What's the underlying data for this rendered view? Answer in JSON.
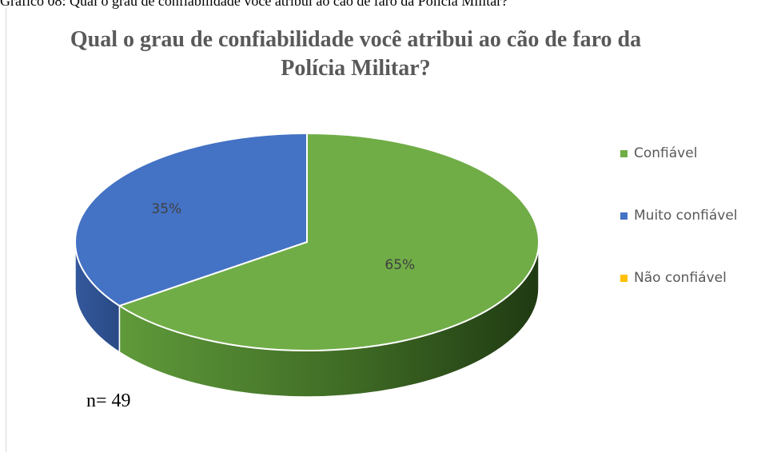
{
  "caption": "Gráfico 08: Qual o grau de confiabilidade você atribui ao cão de faro da Polícia Militar?",
  "chart_data": {
    "type": "pie",
    "title": "Qual o grau de confiabilidade você atribui ao cão de faro da Polícia Militar?",
    "categories": [
      "Confiável",
      "Muito confiável",
      "Não confiável"
    ],
    "values": [
      65,
      35,
      0
    ],
    "data_labels": [
      "65%",
      "35%",
      ""
    ],
    "colors": [
      "#70ad47",
      "#4472c4",
      "#ffc000"
    ],
    "legend_position": "right",
    "style": "3d"
  },
  "sample_note": "n= 49"
}
